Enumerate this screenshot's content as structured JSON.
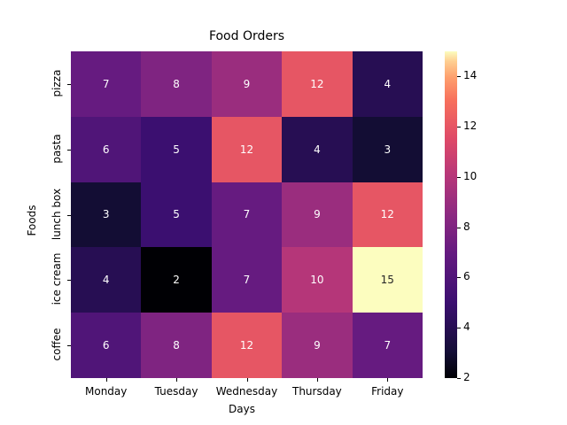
{
  "chart_data": {
    "type": "heatmap",
    "title": "Food Orders",
    "xlabel": "Days",
    "ylabel": "Foods",
    "x": [
      "Monday",
      "Tuesday",
      "Wednesday",
      "Thursday",
      "Friday"
    ],
    "y": [
      "pizza",
      "pasta",
      "lunch box",
      "ice cream",
      "coffee"
    ],
    "values": [
      [
        7,
        8,
        9,
        12,
        4
      ],
      [
        6,
        5,
        12,
        4,
        3
      ],
      [
        3,
        5,
        7,
        9,
        12
      ],
      [
        4,
        2,
        7,
        10,
        15
      ],
      [
        6,
        8,
        12,
        9,
        7
      ]
    ],
    "colormap": "magma",
    "colorbar": {
      "min": 2,
      "max": 15,
      "ticks": [
        2,
        4,
        6,
        8,
        10,
        12,
        14
      ]
    },
    "annotations": true
  }
}
